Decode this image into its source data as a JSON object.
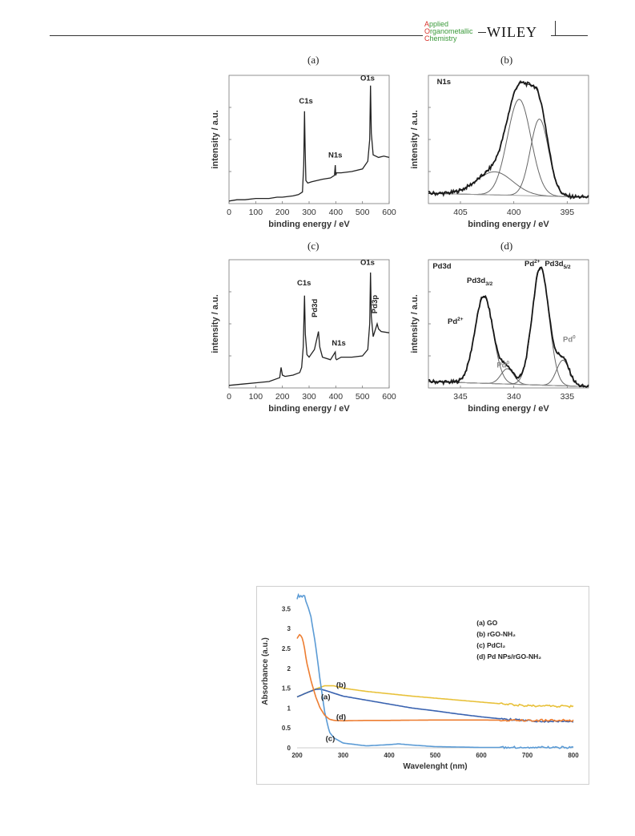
{
  "header": {
    "journal_lines": [
      {
        "cap": "A",
        "rest": "pplied"
      },
      {
        "cap": "O",
        "rest": "rganometallic"
      },
      {
        "cap": "C",
        "rest": "hemistry"
      }
    ],
    "publisher": "WILEY"
  },
  "figure_xps": {
    "panel_letters": [
      "(a)",
      "(b)",
      "(c)",
      "(d)"
    ],
    "xlabel": "binding  energy / eV",
    "ylabel": "intensity / a.u.",
    "panels": [
      {
        "id": "a",
        "type": "line",
        "xlim": [
          0,
          600
        ],
        "xticks": [
          "0",
          "100",
          "200",
          "300",
          "400",
          "500",
          "600"
        ],
        "x": [
          0,
          30,
          60,
          100,
          150,
          180,
          200,
          240,
          260,
          275,
          280,
          283,
          285,
          288,
          295,
          310,
          350,
          380,
          395,
          398,
          400,
          403,
          420,
          460,
          500,
          520,
          527,
          530,
          533,
          540,
          560,
          580,
          600
        ],
        "y": [
          0.02,
          0.03,
          0.03,
          0.04,
          0.04,
          0.05,
          0.05,
          0.06,
          0.07,
          0.09,
          0.3,
          0.72,
          0.45,
          0.18,
          0.16,
          0.17,
          0.19,
          0.2,
          0.22,
          0.3,
          0.22,
          0.24,
          0.24,
          0.25,
          0.27,
          0.33,
          0.5,
          0.92,
          0.55,
          0.38,
          0.36,
          0.37,
          0.36
        ],
        "annotations": [
          {
            "text": "C1s",
            "x": 262,
            "y": 0.78
          },
          {
            "text": "N1s",
            "x": 372,
            "y": 0.36
          },
          {
            "text": "O1s",
            "x": 492,
            "y": 0.96
          }
        ]
      },
      {
        "id": "b",
        "type": "line",
        "xlim": [
          408,
          393
        ],
        "xticks": [
          "405",
          "400",
          "395"
        ],
        "annotations": [
          {
            "text": "N1s",
            "x": 407.2,
            "y": 0.93
          }
        ],
        "peaks": [
          {
            "center": 399.5,
            "height": 0.75,
            "width": 1.1
          },
          {
            "center": 397.6,
            "height": 0.6,
            "width": 0.85
          },
          {
            "center": 401.8,
            "height": 0.18,
            "width": 1.7
          }
        ],
        "baseline": [
          0.08,
          0.05
        ]
      },
      {
        "id": "c",
        "type": "line",
        "xlim": [
          0,
          600
        ],
        "xticks": [
          "0",
          "100",
          "200",
          "300",
          "400",
          "500",
          "600"
        ],
        "x": [
          0,
          50,
          100,
          150,
          190,
          195,
          200,
          210,
          240,
          265,
          272,
          278,
          283,
          286,
          292,
          300,
          320,
          335,
          340,
          350,
          380,
          398,
          400,
          403,
          420,
          460,
          500,
          520,
          527,
          530,
          533,
          540,
          555,
          560,
          570,
          600
        ],
        "y": [
          0.02,
          0.03,
          0.04,
          0.05,
          0.08,
          0.16,
          0.1,
          0.09,
          0.1,
          0.12,
          0.16,
          0.32,
          0.72,
          0.42,
          0.26,
          0.24,
          0.3,
          0.44,
          0.32,
          0.24,
          0.22,
          0.28,
          0.23,
          0.22,
          0.24,
          0.24,
          0.25,
          0.3,
          0.5,
          0.9,
          0.56,
          0.4,
          0.5,
          0.46,
          0.44,
          0.43
        ],
        "annotations": [
          {
            "text": "C1s",
            "x": 255,
            "y": 0.8
          },
          {
            "text": "Pd3d",
            "x": 330,
            "y": 0.55
          },
          {
            "text": "N1s",
            "x": 385,
            "y": 0.33
          },
          {
            "text": "O1s",
            "x": 492,
            "y": 0.96
          },
          {
            "text": "Pd3p",
            "x": 555,
            "y": 0.58
          }
        ]
      },
      {
        "id": "d",
        "type": "line",
        "xlim": [
          348,
          333
        ],
        "xticks": [
          "345",
          "340",
          "335"
        ],
        "annotations": [
          {
            "text": "Pd3d",
            "x": 347.6,
            "y": 0.93
          },
          {
            "text": "Pd3d",
            "sub": "3/2",
            "x": 344.4,
            "y": 0.82
          },
          {
            "text": "Pd",
            "sup": "2+",
            "x": 346.2,
            "y": 0.5
          },
          {
            "text": "Pd",
            "sup": "0",
            "x": 341.6,
            "y": 0.16
          },
          {
            "text": "Pd",
            "sup": "2+",
            "x": 339.0,
            "y": 0.95
          },
          {
            "text": "Pd3d",
            "sub": "5/2",
            "x": 337.1,
            "y": 0.95
          },
          {
            "text": "Pd",
            "sup": "0",
            "x": 335.4,
            "y": 0.36
          }
        ],
        "peaks": [
          {
            "center": 342.8,
            "height": 0.68,
            "width": 0.85
          },
          {
            "center": 337.5,
            "height": 0.92,
            "width": 0.78
          },
          {
            "center": 340.6,
            "height": 0.12,
            "width": 0.6
          },
          {
            "center": 335.4,
            "height": 0.2,
            "width": 0.6
          }
        ],
        "baseline": [
          0.05,
          0.01
        ]
      }
    ]
  },
  "chart_data": {
    "type": "line",
    "title": "",
    "xlabel": "Wavelenght (nm)",
    "ylabel": "Absorbance (a.u.)",
    "xlim": [
      200,
      800
    ],
    "ylim": [
      0,
      3.85
    ],
    "xticks": [
      "200",
      "300",
      "400",
      "500",
      "600",
      "700",
      "800"
    ],
    "yticks": [
      "0",
      "0.5",
      "1",
      "1.5",
      "2",
      "2.5",
      "3",
      "3.5"
    ],
    "legend": [
      "(a) GO",
      "(b) rGO-NH₂",
      "(c) PdCl₂",
      "(d) Pd NPs/rGO-NH₂"
    ],
    "curve_labels": [
      {
        "text": "(a)",
        "x": 252,
        "y": 1.22
      },
      {
        "text": "(b)",
        "x": 285,
        "y": 1.52
      },
      {
        "text": "(d)",
        "x": 285,
        "y": 0.72
      },
      {
        "text": "(c)",
        "x": 262,
        "y": 0.17
      }
    ],
    "series": [
      {
        "color": "#e8c13a",
        "x": [
          200,
          220,
          240,
          260,
          280,
          300,
          350,
          400,
          450,
          500,
          550,
          600,
          650,
          700,
          750,
          800
        ],
        "y": [
          1.28,
          1.38,
          1.48,
          1.56,
          1.56,
          1.5,
          1.42,
          1.36,
          1.3,
          1.25,
          1.2,
          1.15,
          1.1,
          1.06,
          1.05,
          1.04
        ]
      },
      {
        "color": "#3a63b0",
        "x": [
          200,
          220,
          240,
          250,
          265,
          300,
          350,
          400,
          450,
          500,
          550,
          600,
          650,
          700,
          750,
          800
        ],
        "y": [
          1.28,
          1.38,
          1.47,
          1.48,
          1.43,
          1.3,
          1.2,
          1.1,
          1.0,
          0.93,
          0.85,
          0.78,
          0.72,
          0.68,
          0.67,
          0.66
        ]
      },
      {
        "color": "#5b9bd5",
        "x": [
          200,
          205,
          210,
          215,
          220,
          230,
          240,
          250,
          260,
          270,
          280,
          300,
          350,
          400,
          420,
          450,
          500,
          550,
          600,
          700,
          800
        ],
        "y": [
          3.8,
          3.85,
          3.8,
          3.85,
          3.7,
          3.3,
          2.6,
          1.7,
          0.9,
          0.4,
          0.25,
          0.12,
          0.05,
          0.08,
          0.1,
          0.07,
          0.03,
          0.02,
          0.01,
          0.01,
          0.01
        ]
      },
      {
        "color": "#ed7d31",
        "x": [
          200,
          205,
          210,
          215,
          220,
          230,
          240,
          250,
          260,
          270,
          280,
          300,
          350,
          400,
          500,
          600,
          700,
          800
        ],
        "y": [
          2.75,
          2.85,
          2.8,
          2.6,
          2.2,
          1.7,
          1.3,
          1.0,
          0.82,
          0.72,
          0.69,
          0.68,
          0.69,
          0.69,
          0.7,
          0.7,
          0.69,
          0.69
        ]
      }
    ]
  }
}
